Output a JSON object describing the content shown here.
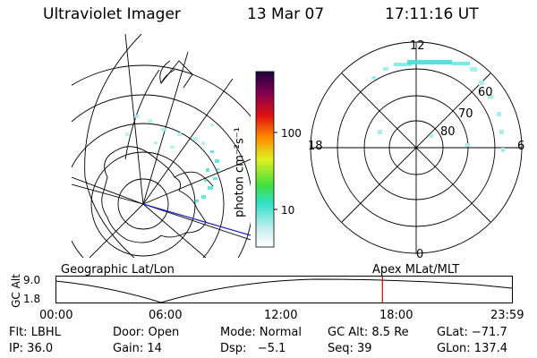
{
  "header": {
    "instrument": "Ultraviolet Imager",
    "date": "13 Mar 07",
    "time": "17:11:16 UT"
  },
  "colorbar": {
    "unit_label": "photon cm⁻²s⁻¹",
    "ticks": [
      "100",
      "10"
    ]
  },
  "polar_plot": {
    "mlt_labels": {
      "top": "12",
      "left": "18",
      "right": "6",
      "bottom": "0"
    },
    "lat_labels": [
      "60",
      "70",
      "80"
    ]
  },
  "map_labels": {
    "geographic": "Geographic Lat/Lon",
    "apex": "Apex MLat/MLT"
  },
  "altitude_plot": {
    "ylabel": "GC Alt",
    "yticks": [
      "9.0",
      "1.8"
    ],
    "xticks": [
      "00:00",
      "06:00",
      "12:00",
      "18:00",
      "23:59"
    ],
    "current_time_hours": 17.19,
    "marker_color": "#cc0000"
  },
  "info": {
    "filter": "Flt: LBHL",
    "door": "Door: Open",
    "mode": "Mode: Normal",
    "gc_alt": "GC Alt: 8.5 Re",
    "glat": "GLat: −71.7",
    "ip": "IP: 36.0",
    "gain": "Gain: 14",
    "dsp": "Dsp:   −5.1",
    "seq": "Seq: 39",
    "glon": "GLon: 137.4"
  },
  "colors": {
    "aurora": "#40e0d8",
    "aurora_light": "#a8eeea",
    "orbit_line": "#2020c0"
  }
}
